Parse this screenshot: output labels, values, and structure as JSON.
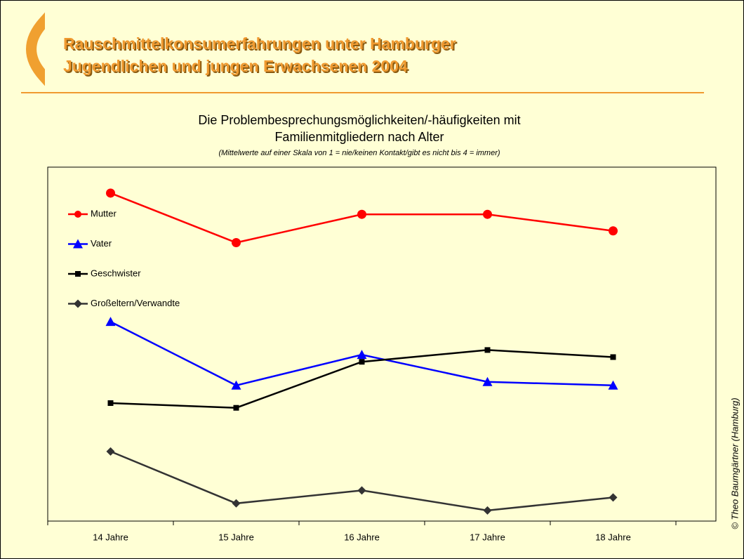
{
  "header": {
    "title_line1": "Rauschmittelkonsumerfahrungen unter Hamburger",
    "title_line2": "Jugendlichen und jungen Erwachsenen 2004"
  },
  "copyright": "© Theo Baumgärtner (Hamburg)",
  "chart_data": {
    "type": "line",
    "title_line1": "Die Problembesprechungsmöglichkeiten/-häufigkeiten mit",
    "title_line2": "Familienmitgliedern nach Alter",
    "subtitle": "(Mittelwerte auf einer Skala von 1 = nie/keinen Kontakt/gibt es nicht bis 4 = immer)",
    "categories": [
      "14 Jahre",
      "15 Jahre",
      "16 Jahre",
      "17 Jahre",
      "18 Jahre"
    ],
    "ylim": [
      1,
      4
    ],
    "legend": "upper left",
    "series": [
      {
        "name": "Mutter",
        "color": "#ff0000",
        "marker": "circle",
        "values": [
          3.78,
          3.36,
          3.6,
          3.6,
          3.46
        ]
      },
      {
        "name": "Vater",
        "color": "#0000ff",
        "marker": "triangle",
        "values": [
          2.69,
          2.15,
          2.41,
          2.18,
          2.15
        ]
      },
      {
        "name": "Geschwister",
        "color": "#000000",
        "marker": "square",
        "values": [
          2.0,
          1.96,
          2.35,
          2.45,
          2.39
        ]
      },
      {
        "name": "Großeltern/Verwandte",
        "color": "#333333",
        "marker": "diamond",
        "values": [
          1.59,
          1.15,
          1.26,
          1.09,
          1.2
        ]
      }
    ]
  }
}
